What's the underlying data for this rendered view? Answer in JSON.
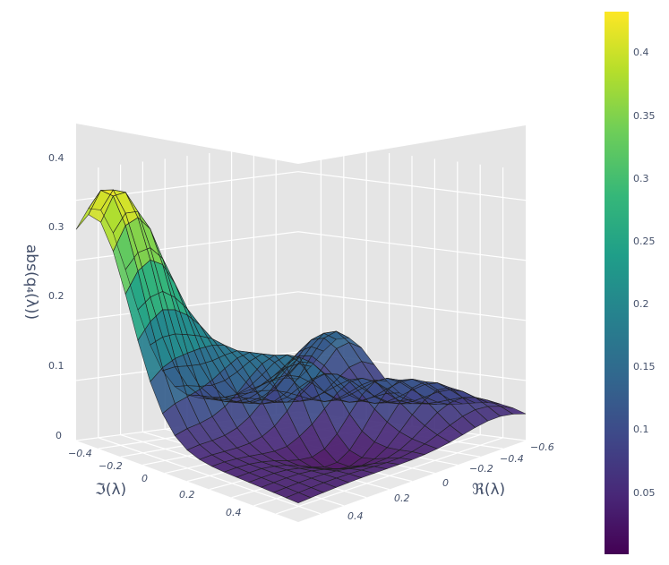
{
  "chart_data": {
    "type": "surface3d",
    "title": "",
    "x_axis": {
      "label": "ℜ(λ)",
      "ticks": [
        "−0.6",
        "−0.4",
        "−0.2",
        "0",
        "0.2",
        "0.4"
      ]
    },
    "y_axis": {
      "label": "ℑ(λ)",
      "ticks": [
        "−0.4",
        "−0.2",
        "0",
        "0.2",
        "0.4"
      ]
    },
    "z_axis": {
      "label": "abs(q₄(λ))",
      "ticks": [
        "0",
        "0.1",
        "0.2",
        "0.3",
        "0.4"
      ],
      "range": [
        0,
        0.45
      ]
    },
    "colorbar": {
      "colorscale": "Viridis",
      "range": [
        0,
        0.43
      ],
      "ticks": [
        "0.05",
        "0.1",
        "0.15",
        "0.2",
        "0.25",
        "0.3",
        "0.35",
        "0.4"
      ]
    },
    "grid": true,
    "mesh_edges": true,
    "colors": {
      "background_panel": "#e5e5e5",
      "grid": "#ffffff",
      "edge": "#202020"
    },
    "surface_samples": [
      {
        "re": 0.45,
        "im": -0.45,
        "z": 0.44
      },
      {
        "re": 0.45,
        "im": 0.45,
        "z": 0.0
      },
      {
        "re": -0.45,
        "im": 0.45,
        "z": 0.0
      },
      {
        "re": -0.45,
        "im": -0.45,
        "z": 0.13
      },
      {
        "re": 0.0,
        "im": 0.0,
        "z": 0.15
      },
      {
        "re": -0.2,
        "im": -0.2,
        "z": 0.19
      },
      {
        "re": 0.2,
        "im": 0.2,
        "z": 0.05
      }
    ]
  }
}
